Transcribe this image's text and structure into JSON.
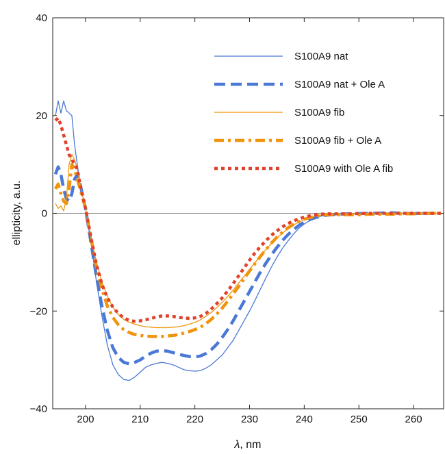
{
  "chart_data": {
    "type": "line",
    "title": "",
    "xlabel_var": "λ",
    "xlabel_unit": ", nm",
    "ylabel": "ellipticity, a.u.",
    "xlim": [
      194,
      265.5
    ],
    "ylim": [
      -40,
      40
    ],
    "xticks": [
      200,
      210,
      220,
      230,
      240,
      250,
      260
    ],
    "yticks": [
      -40,
      -20,
      0,
      20,
      40
    ],
    "ytick_labels": [
      "−40",
      "−20",
      "0",
      "20",
      "40"
    ],
    "grid": false,
    "zero_line": true,
    "legend_position": "top-right",
    "series": [
      {
        "name": "S100A9 nat",
        "color": "#4a78d6",
        "style": "solid-thin",
        "x": [
          194.5,
          195,
          195.5,
          196,
          196.5,
          197,
          197.5,
          198,
          198.5,
          199,
          200,
          201,
          202,
          203,
          204,
          205,
          206,
          207,
          208,
          209,
          210,
          211,
          212,
          213,
          214,
          215,
          216,
          217,
          218,
          219,
          220,
          221,
          222,
          223,
          224,
          225,
          226,
          227,
          228,
          229,
          230,
          231,
          232,
          233,
          234,
          235,
          236,
          237,
          238,
          239,
          240,
          241,
          242,
          243,
          244,
          245,
          246,
          248,
          250,
          252,
          254,
          256,
          258,
          260,
          262,
          265
        ],
        "y": [
          20,
          23,
          20.5,
          23,
          21,
          20.5,
          20,
          14,
          10,
          6,
          1,
          -6,
          -14,
          -21,
          -27,
          -31,
          -33,
          -34,
          -34.2,
          -33.5,
          -32.5,
          -31.5,
          -31,
          -30.7,
          -30.5,
          -30.7,
          -31,
          -31.5,
          -32,
          -32.2,
          -32.3,
          -32.2,
          -31.7,
          -31,
          -30,
          -29,
          -27.5,
          -26,
          -24,
          -22,
          -20,
          -17.8,
          -15.5,
          -13.2,
          -11,
          -9,
          -7.2,
          -5.7,
          -4.3,
          -3.1,
          -2.2,
          -1.5,
          -1,
          -0.6,
          -0.4,
          -0.3,
          -0.2,
          -0.1,
          -0.05,
          0,
          0.05,
          0.1,
          0,
          -0.05,
          0,
          0
        ]
      },
      {
        "name": "S100A9 nat + Ole A",
        "color": "#4a78d6",
        "style": "dashed-thick",
        "x": [
          194.5,
          195,
          195.5,
          196,
          196.5,
          197,
          197.5,
          198,
          198.5,
          199,
          200,
          201,
          202,
          203,
          204,
          205,
          206,
          207,
          208,
          209,
          210,
          211,
          212,
          213,
          214,
          215,
          216,
          217,
          218,
          219,
          220,
          221,
          222,
          223,
          224,
          225,
          226,
          227,
          228,
          229,
          230,
          231,
          232,
          233,
          234,
          235,
          236,
          237,
          238,
          239,
          240,
          241,
          242,
          243,
          244,
          245,
          246,
          248,
          250,
          252,
          254,
          256,
          258,
          260,
          262,
          265
        ],
        "y": [
          8,
          9.5,
          8,
          5,
          3,
          2.5,
          4,
          7,
          8,
          6,
          1,
          -6,
          -13,
          -19,
          -24,
          -27.5,
          -29.5,
          -30.5,
          -30.8,
          -30.5,
          -30,
          -29.2,
          -28.6,
          -28.2,
          -28.1,
          -28.2,
          -28.5,
          -28.8,
          -29.1,
          -29.3,
          -29.4,
          -29.2,
          -28.7,
          -27.9,
          -26.8,
          -25.4,
          -23.8,
          -22,
          -20,
          -18,
          -16,
          -14,
          -12,
          -10.2,
          -8.5,
          -7,
          -5.6,
          -4.4,
          -3.4,
          -2.5,
          -1.8,
          -1.3,
          -0.9,
          -0.6,
          -0.4,
          -0.3,
          -0.2,
          -0.1,
          -0.05,
          0,
          0.05,
          0.1,
          0,
          -0.05,
          0,
          0
        ]
      },
      {
        "name": "S100A9 fib",
        "color": "#f0940c",
        "style": "solid-thin",
        "x": [
          194.5,
          195,
          195.5,
          196,
          196.5,
          197,
          197.5,
          198,
          198.5,
          199,
          200,
          201,
          202,
          203,
          204,
          205,
          206,
          207,
          208,
          209,
          210,
          211,
          212,
          213,
          214,
          215,
          216,
          217,
          218,
          219,
          220,
          221,
          222,
          223,
          224,
          225,
          226,
          227,
          228,
          229,
          230,
          231,
          232,
          233,
          234,
          235,
          236,
          237,
          238,
          239,
          240,
          241,
          242,
          243,
          244,
          245,
          246,
          248,
          250,
          252,
          254,
          256,
          258,
          260,
          262,
          265
        ],
        "y": [
          2,
          1,
          1.5,
          0.5,
          3,
          10,
          12,
          11,
          9,
          6,
          1,
          -5,
          -10,
          -14,
          -17,
          -19.2,
          -20.7,
          -21.7,
          -22.3,
          -22.7,
          -23,
          -23.2,
          -23.3,
          -23.4,
          -23.4,
          -23.4,
          -23.3,
          -23.2,
          -23,
          -22.7,
          -22.3,
          -21.8,
          -21.1,
          -20.3,
          -19.3,
          -18.2,
          -17,
          -15.7,
          -14.3,
          -12.9,
          -11.5,
          -10.1,
          -8.7,
          -7.4,
          -6.2,
          -5.1,
          -4.1,
          -3.2,
          -2.4,
          -1.8,
          -1.3,
          -0.9,
          -0.6,
          -0.4,
          -0.3,
          -0.2,
          -0.2,
          -0.15,
          -0.1,
          -0.1,
          -0.05,
          0,
          0,
          0,
          0,
          0
        ]
      },
      {
        "name": "S100A9 fib + Ole A",
        "color": "#f0940c",
        "style": "dashdot-thick",
        "x": [
          194.5,
          195,
          195.5,
          196,
          196.5,
          197,
          197.5,
          198,
          198.5,
          199,
          200,
          201,
          202,
          203,
          204,
          205,
          206,
          207,
          208,
          209,
          210,
          211,
          212,
          213,
          214,
          215,
          216,
          217,
          218,
          219,
          220,
          221,
          222,
          223,
          224,
          225,
          226,
          227,
          228,
          229,
          230,
          231,
          232,
          233,
          234,
          235,
          236,
          237,
          238,
          239,
          240,
          241,
          242,
          243,
          244,
          245,
          246,
          248,
          250,
          252,
          254,
          256,
          258,
          260,
          262,
          265
        ],
        "y": [
          5,
          6,
          4,
          2.5,
          2,
          5,
          10,
          9,
          7,
          5,
          1,
          -5,
          -11,
          -15.5,
          -19,
          -21.3,
          -22.8,
          -23.8,
          -24.4,
          -24.8,
          -25,
          -25.1,
          -25.2,
          -25.2,
          -25.2,
          -25.1,
          -25,
          -24.8,
          -24.5,
          -24.2,
          -23.8,
          -23.3,
          -22.6,
          -21.7,
          -20.6,
          -19.4,
          -18,
          -16.5,
          -15,
          -13.4,
          -11.8,
          -10.3,
          -8.8,
          -7.4,
          -6.1,
          -4.9,
          -3.9,
          -3,
          -2.3,
          -1.7,
          -1.2,
          -0.9,
          -0.6,
          -0.4,
          -0.3,
          -0.3,
          -0.3,
          -0.3,
          -0.3,
          -0.2,
          -0.2,
          -0.2,
          -0.1,
          -0.1,
          0,
          0
        ]
      },
      {
        "name": "S100A9 with Ole A fib",
        "color": "#e0412b",
        "style": "dotted-thick",
        "x": [
          194.5,
          195,
          195.5,
          196,
          196.5,
          197,
          197.5,
          198,
          198.5,
          199,
          200,
          201,
          202,
          203,
          204,
          205,
          206,
          207,
          208,
          209,
          210,
          211,
          212,
          213,
          214,
          215,
          216,
          217,
          218,
          219,
          220,
          221,
          222,
          223,
          224,
          225,
          226,
          227,
          228,
          229,
          230,
          231,
          232,
          233,
          234,
          235,
          236,
          237,
          238,
          239,
          240,
          241,
          242,
          243,
          244,
          245,
          246,
          248,
          250,
          252,
          254,
          256,
          258,
          260,
          262,
          265
        ],
        "y": [
          19,
          19.5,
          18,
          16,
          14,
          12,
          11,
          10,
          9,
          6,
          1,
          -5,
          -10.5,
          -14.5,
          -17.3,
          -19.2,
          -20.5,
          -21.4,
          -21.9,
          -22.1,
          -22,
          -21.8,
          -21.5,
          -21.2,
          -21,
          -21,
          -21.1,
          -21.3,
          -21.4,
          -21.5,
          -21.4,
          -21.1,
          -20.5,
          -19.6,
          -18.5,
          -17.3,
          -15.9,
          -14.4,
          -12.8,
          -11.2,
          -9.6,
          -8.1,
          -6.8,
          -5.6,
          -4.5,
          -3.6,
          -2.8,
          -2.1,
          -1.6,
          -1.1,
          -0.8,
          -0.5,
          -0.3,
          -0.2,
          -0.1,
          -0.1,
          -0.1,
          -0.1,
          -0.05,
          0,
          0,
          0,
          0,
          0,
          0,
          0
        ]
      }
    ]
  }
}
